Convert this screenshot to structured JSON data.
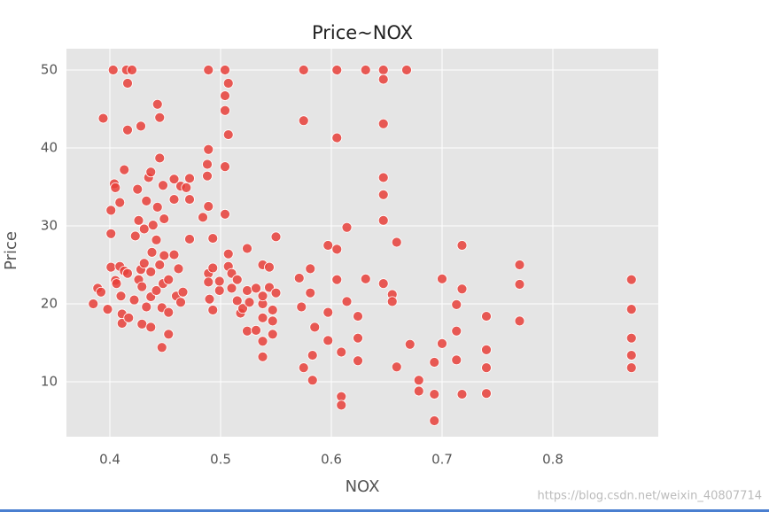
{
  "chart_data": {
    "type": "scatter",
    "title": "Price~NOX",
    "xlabel": "NOX",
    "ylabel": "Price",
    "watermark": "https://blog.csdn.net/weixin_40807714",
    "color": "#e8403a",
    "grid": true,
    "xlim": [
      0.3608,
      0.8952
    ],
    "ylim": [
      2.95,
      52.73
    ],
    "xticks": [
      0.4,
      0.5,
      0.6,
      0.7,
      0.8
    ],
    "yticks": [
      10,
      20,
      30,
      40,
      50
    ],
    "x": [
      0.385,
      0.389,
      0.392,
      0.394,
      0.398,
      0.401,
      0.401,
      0.401,
      0.403,
      0.404,
      0.405,
      0.405,
      0.406,
      0.409,
      0.409,
      0.41,
      0.411,
      0.411,
      0.413,
      0.413,
      0.415,
      0.416,
      0.416,
      0.416,
      0.417,
      0.42,
      0.422,
      0.423,
      0.425,
      0.426,
      0.426,
      0.428,
      0.428,
      0.429,
      0.429,
      0.431,
      0.431,
      0.433,
      0.433,
      0.435,
      0.437,
      0.437,
      0.437,
      0.437,
      0.438,
      0.439,
      0.442,
      0.442,
      0.443,
      0.443,
      0.445,
      0.445,
      0.445,
      0.447,
      0.447,
      0.448,
      0.448,
      0.449,
      0.449,
      0.453,
      0.453,
      0.453,
      0.458,
      0.458,
      0.458,
      0.46,
      0.462,
      0.464,
      0.464,
      0.466,
      0.469,
      0.472,
      0.472,
      0.472,
      0.484,
      0.488,
      0.488,
      0.489,
      0.489,
      0.489,
      0.489,
      0.489,
      0.49,
      0.493,
      0.493,
      0.493,
      0.499,
      0.499,
      0.504,
      0.504,
      0.504,
      0.504,
      0.504,
      0.507,
      0.507,
      0.507,
      0.507,
      0.51,
      0.51,
      0.515,
      0.515,
      0.518,
      0.52,
      0.524,
      0.524,
      0.524,
      0.526,
      0.532,
      0.532,
      0.538,
      0.538,
      0.538,
      0.538,
      0.538,
      0.538,
      0.544,
      0.544,
      0.547,
      0.547,
      0.547,
      0.55,
      0.55,
      0.571,
      0.573,
      0.575,
      0.575,
      0.575,
      0.581,
      0.581,
      0.583,
      0.583,
      0.585,
      0.597,
      0.597,
      0.597,
      0.605,
      0.605,
      0.605,
      0.605,
      0.609,
      0.609,
      0.609,
      0.614,
      0.614,
      0.624,
      0.624,
      0.624,
      0.631,
      0.631,
      0.647,
      0.647,
      0.647,
      0.647,
      0.647,
      0.647,
      0.647,
      0.655,
      0.655,
      0.659,
      0.659,
      0.668,
      0.671,
      0.679,
      0.679,
      0.693,
      0.693,
      0.693,
      0.7,
      0.7,
      0.713,
      0.713,
      0.713,
      0.718,
      0.718,
      0.718,
      0.74,
      0.74,
      0.74,
      0.74,
      0.77,
      0.77,
      0.77,
      0.871,
      0.871,
      0.871,
      0.871,
      0.871
    ],
    "values": [
      20.0,
      22,
      21.5,
      43.8,
      19.3,
      24.7,
      29,
      32,
      50,
      35.4,
      34.9,
      23,
      22.6,
      24.8,
      33,
      21,
      18.7,
      17.5,
      24.2,
      37.2,
      50,
      48.3,
      42.3,
      23.9,
      18.2,
      50,
      20.5,
      28.7,
      34.7,
      23.1,
      30.7,
      42.8,
      24.4,
      22.2,
      17.4,
      25.2,
      29.6,
      19.6,
      33.2,
      36.2,
      36.9,
      24.1,
      20.9,
      17.0,
      26.6,
      30.1,
      21.7,
      28.2,
      45.6,
      32.4,
      38.7,
      43.9,
      25.0,
      19.5,
      14.4,
      35.2,
      22.6,
      26.2,
      30.9,
      23.1,
      16.1,
      18.9,
      36.0,
      26.3,
      33.4,
      21.0,
      24.5,
      35.1,
      20.2,
      21.5,
      34.9,
      28.3,
      36.1,
      33.4,
      31.1,
      36.4,
      37.9,
      39.8,
      32.5,
      50,
      23.9,
      22.8,
      20.6,
      19.2,
      28.4,
      24.6,
      21.7,
      22.9,
      50,
      46.7,
      44.8,
      37.6,
      31.5,
      41.7,
      48.3,
      24.8,
      26.4,
      23.9,
      22.0,
      23.1,
      20.4,
      18.8,
      19.4,
      27.1,
      16.5,
      21.7,
      20.2,
      22.0,
      16.6,
      25.0,
      20.0,
      15.2,
      13.2,
      18.2,
      21.0,
      24.7,
      22.1,
      19.2,
      17.8,
      16.1,
      28.6,
      21.4,
      23.3,
      19.6,
      50,
      43.5,
      11.8,
      24.5,
      21.4,
      10.2,
      13.4,
      17.0,
      27.5,
      18.9,
      15.3,
      50,
      41.3,
      27.0,
      23.1,
      8.1,
      7.0,
      13.8,
      29.8,
      20.3,
      15.6,
      18.4,
      12.7,
      50,
      23.2,
      50,
      48.8,
      43.1,
      36.2,
      34.0,
      30.7,
      22.6,
      21.2,
      20.3,
      27.9,
      11.9,
      50,
      14.8,
      8.8,
      10.2,
      5.0,
      8.4,
      12.5,
      23.2,
      14.9,
      19.9,
      16.5,
      12.8,
      27.5,
      21.9,
      8.4,
      18.4,
      14.1,
      11.8,
      8.5,
      25.0,
      22.5,
      17.8,
      23.1,
      19.3,
      15.6,
      13.4,
      11.8
    ]
  }
}
